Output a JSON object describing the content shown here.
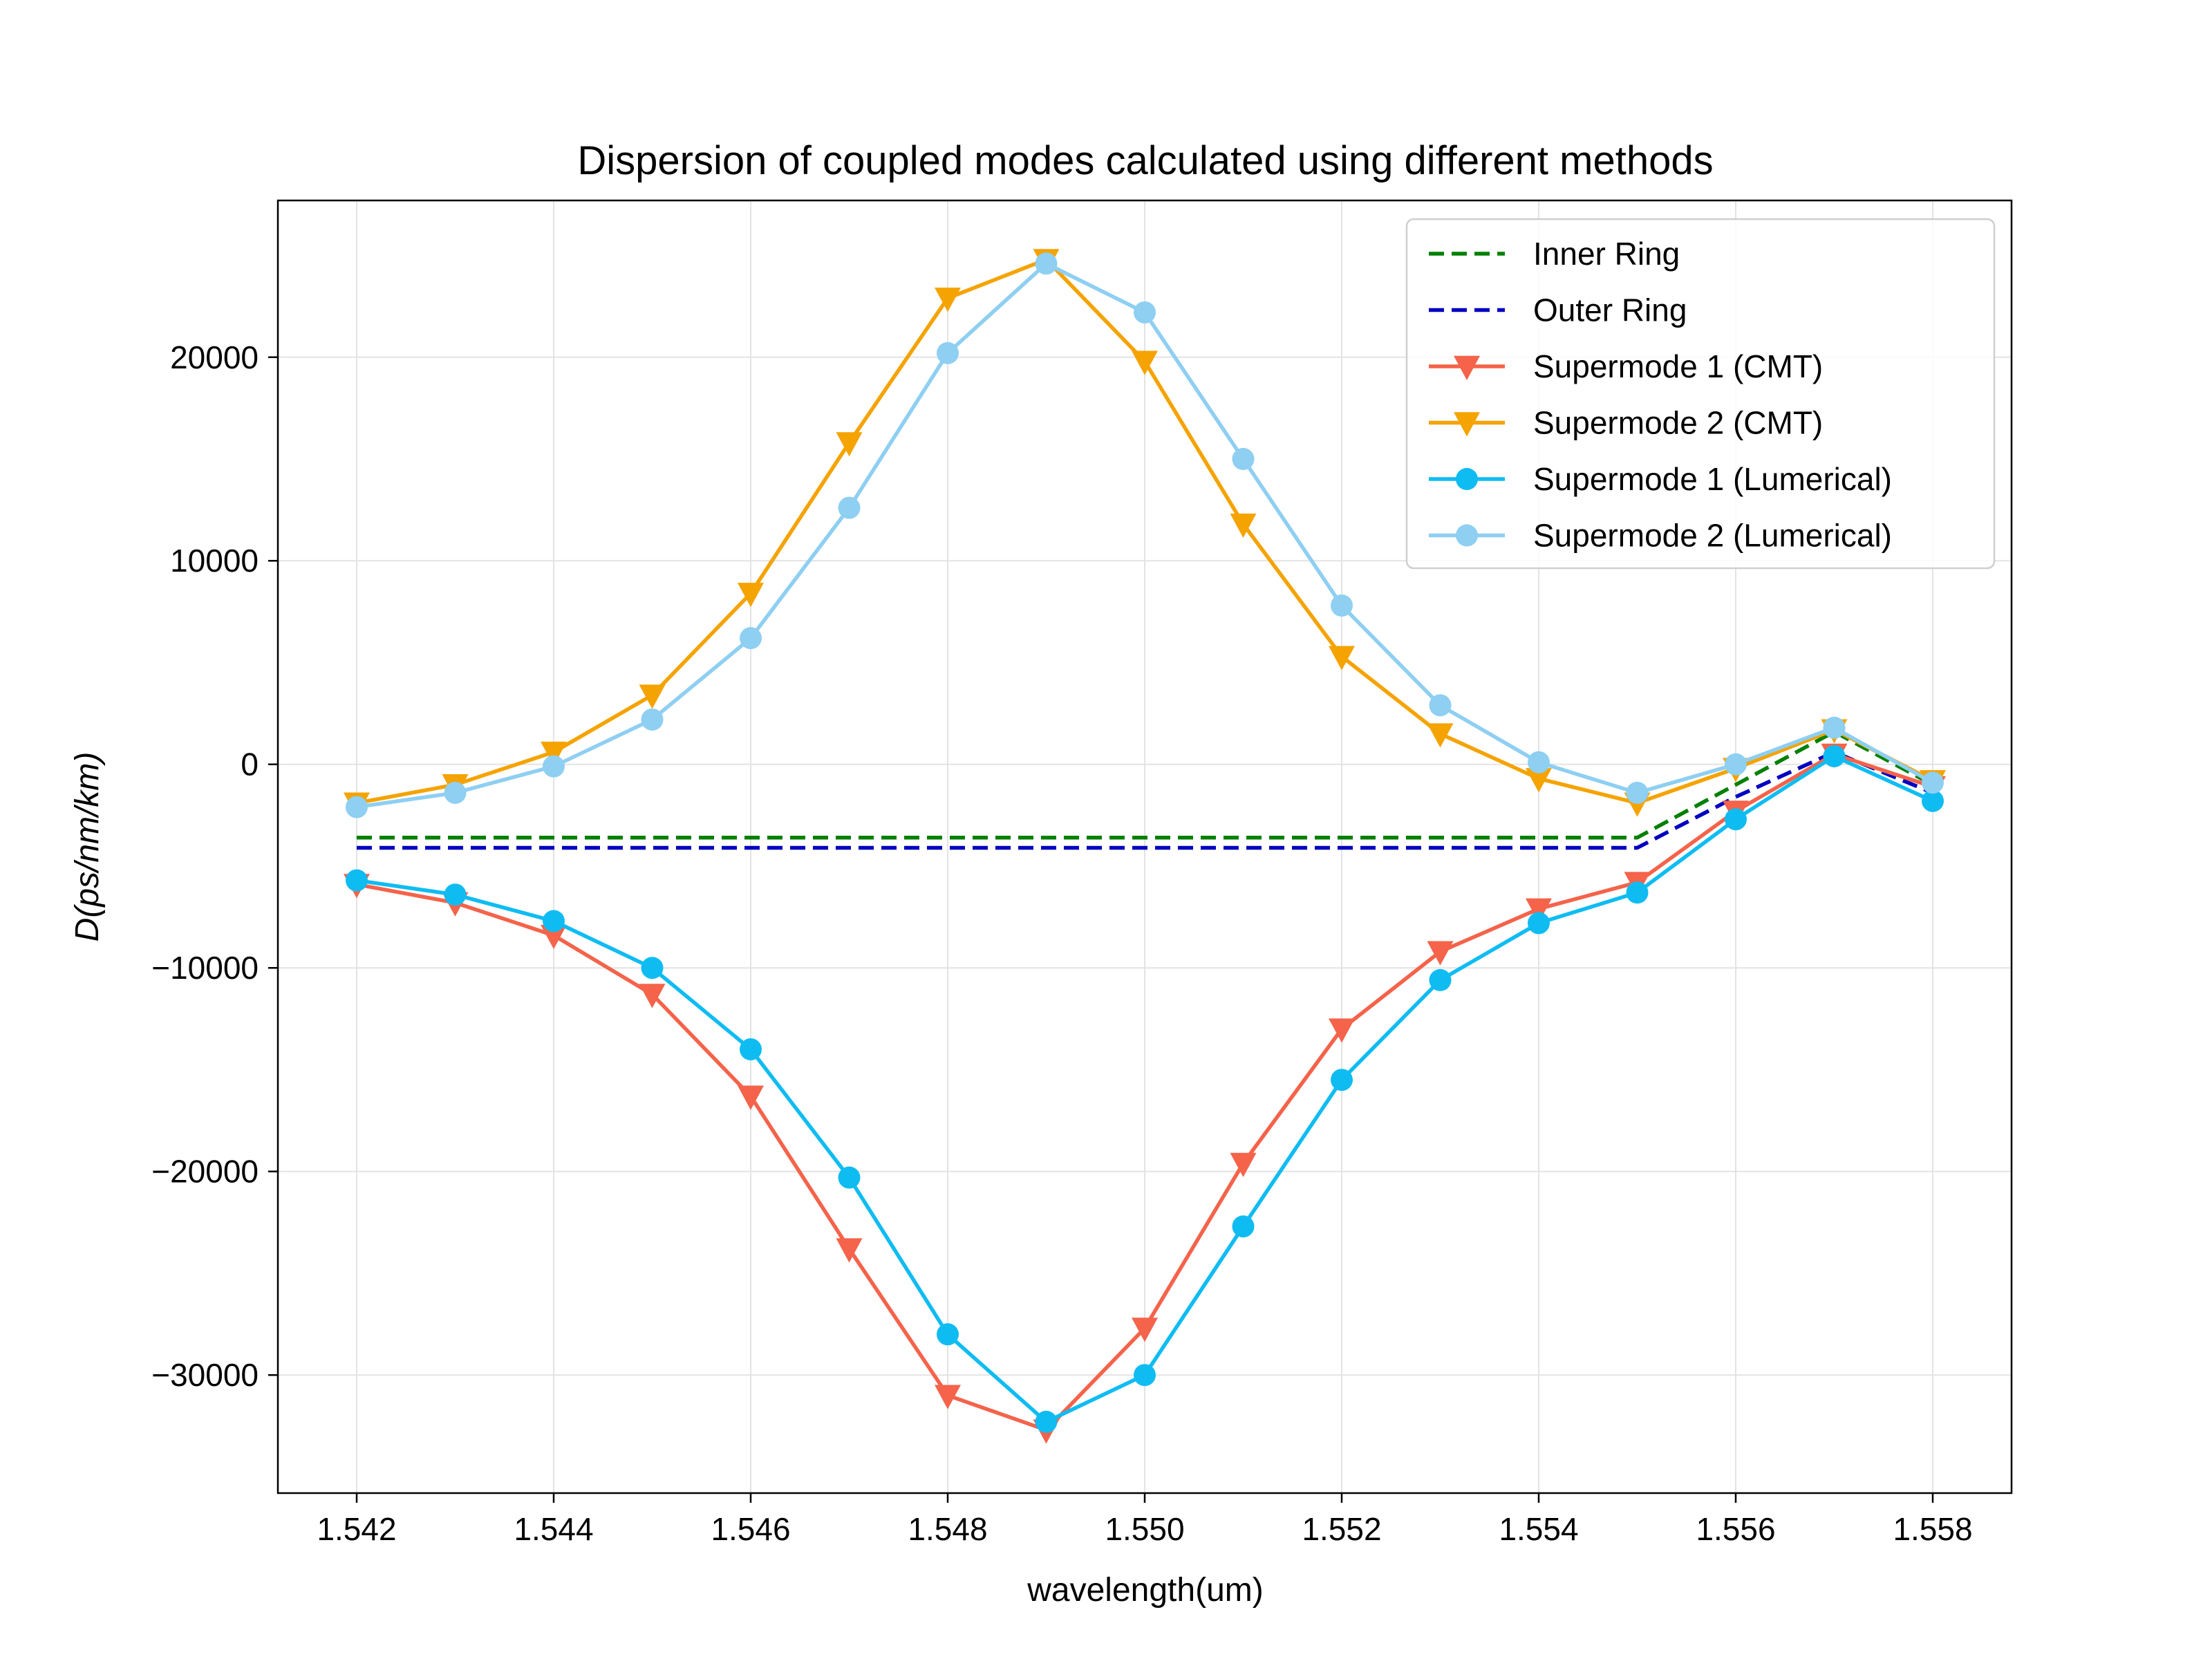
{
  "chart_data": {
    "type": "line",
    "title": "Dispersion of coupled modes calculated using different methods",
    "xlabel": "wavelength(um)",
    "ylabel": "D(ps/nm/km)",
    "xlim": [
      1.5412,
      1.5588
    ],
    "ylim": [
      -35800,
      27700
    ],
    "xticks": [
      1.542,
      1.544,
      1.546,
      1.548,
      1.55,
      1.552,
      1.554,
      1.556,
      1.558
    ],
    "xtick_labels": [
      "1.542",
      "1.544",
      "1.546",
      "1.548",
      "1.550",
      "1.552",
      "1.554",
      "1.556",
      "1.558"
    ],
    "yticks": [
      -30000,
      -20000,
      -10000,
      0,
      10000,
      20000
    ],
    "ytick_labels": [
      "−30000",
      "−20000",
      "−10000",
      "0",
      "10000",
      "20000"
    ],
    "grid": true,
    "legend_position": "top-right",
    "x": [
      1.542,
      1.543,
      1.544,
      1.545,
      1.546,
      1.547,
      1.548,
      1.549,
      1.55,
      1.551,
      1.552,
      1.553,
      1.554,
      1.555,
      1.556,
      1.557,
      1.558
    ],
    "series": [
      {
        "name": "Inner Ring",
        "color": "#008000",
        "style": "dashed",
        "marker": "none",
        "values": [
          -3600,
          -3600,
          -3600,
          -3600,
          -3600,
          -3600,
          -3600,
          -3600,
          -3600,
          -3600,
          -3600,
          -3600,
          -3600,
          -3600,
          -1000,
          1600,
          -1000
        ]
      },
      {
        "name": "Outer Ring",
        "color": "#0000c0",
        "style": "dashed",
        "marker": "none",
        "values": [
          -4100,
          -4100,
          -4100,
          -4100,
          -4100,
          -4100,
          -4100,
          -4100,
          -4100,
          -4100,
          -4100,
          -4100,
          -4100,
          -4100,
          -1600,
          600,
          -1400
        ]
      },
      {
        "name": "Supermode 1 (CMT)",
        "color": "#f4634a",
        "style": "solid",
        "marker": "triangle-down",
        "values": [
          -5900,
          -6800,
          -8400,
          -11300,
          -16300,
          -23800,
          -31000,
          -32700,
          -27700,
          -19600,
          -13000,
          -9200,
          -7100,
          -5800,
          -2300,
          500,
          -1100
        ]
      },
      {
        "name": "Supermode 2 (CMT)",
        "color": "#f5a300",
        "style": "solid",
        "marker": "triangle-down",
        "values": [
          -1900,
          -1000,
          600,
          3400,
          8400,
          15800,
          22900,
          24800,
          19800,
          11800,
          5300,
          1500,
          -700,
          -1900,
          -200,
          1700,
          -800
        ]
      },
      {
        "name": "Supermode 1 (Lumerical)",
        "color": "#0fbcf2",
        "style": "solid",
        "marker": "circle",
        "values": [
          -5700,
          -6400,
          -7700,
          -10000,
          -14000,
          -20300,
          -28000,
          -32300,
          -30000,
          -22700,
          -15500,
          -10600,
          -7800,
          -6300,
          -2700,
          400,
          -1800
        ]
      },
      {
        "name": "Supermode 2 (Lumerical)",
        "color": "#8ecff2",
        "style": "solid",
        "marker": "circle",
        "values": [
          -2100,
          -1400,
          -100,
          2200,
          6200,
          12600,
          20200,
          24600,
          22200,
          15000,
          7800,
          2900,
          100,
          -1400,
          0,
          1800,
          -900
        ]
      }
    ]
  }
}
